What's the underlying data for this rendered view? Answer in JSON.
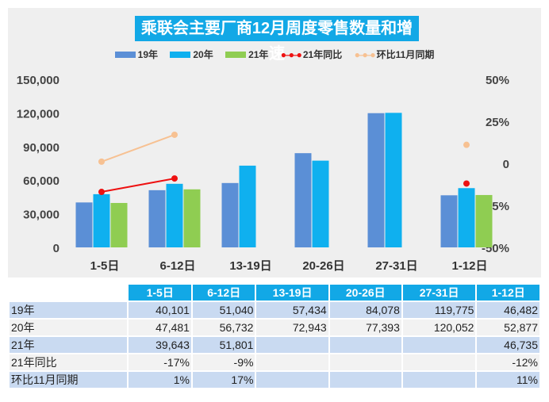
{
  "chart_data": {
    "type": "bar",
    "title": "乘联会主要厂商12月周度零售数量和增速",
    "categories": [
      "1-5日",
      "6-12日",
      "13-19日",
      "20-26日",
      "27-31日",
      "1-12日"
    ],
    "series": [
      {
        "name": "19年",
        "values": [
          40101,
          51040,
          57434,
          84078,
          119775,
          46482
        ],
        "color": "#5b8fd6"
      },
      {
        "name": "20年",
        "values": [
          47481,
          56732,
          72943,
          77393,
          120052,
          52877
        ],
        "color": "#0fb0ef"
      },
      {
        "name": "21年",
        "values": [
          39643,
          51801,
          null,
          null,
          null,
          46735
        ],
        "color": "#8fcd52"
      }
    ],
    "lines": [
      {
        "name": "21年同比",
        "values": [
          -17,
          -9,
          null,
          null,
          null,
          -12
        ],
        "color": "#ee1111"
      },
      {
        "name": "环比11月同期",
        "values": [
          1,
          17,
          null,
          null,
          null,
          11
        ],
        "color": "#f7c192"
      }
    ],
    "ylim": [
      0,
      150000
    ],
    "y2lim": [
      -50,
      50
    ],
    "yticks": [
      "0",
      "30,000",
      "60,000",
      "90,000",
      "120,000",
      "150,000"
    ],
    "y2ticks": [
      "-50%",
      "-25%",
      "0",
      "25%",
      "50%"
    ],
    "legend": "top"
  },
  "table": {
    "headers": [
      "",
      "1-5日",
      "6-12日",
      "13-19日",
      "20-26日",
      "27-31日",
      "1-12日"
    ],
    "rows": [
      [
        "19年",
        "40,101",
        "51,040",
        "57,434",
        "84,078",
        "119,775",
        "46,482"
      ],
      [
        "20年",
        "47,481",
        "56,732",
        "72,943",
        "77,393",
        "120,052",
        "52,877"
      ],
      [
        "21年",
        "39,643",
        "51,801",
        "",
        "",
        "",
        "46,735"
      ],
      [
        "21年同比",
        "-17%",
        "-9%",
        "",
        "",
        "",
        "-12%"
      ],
      [
        "环比11月同期",
        "1%",
        "17%",
        "",
        "",
        "",
        "11%"
      ]
    ]
  }
}
